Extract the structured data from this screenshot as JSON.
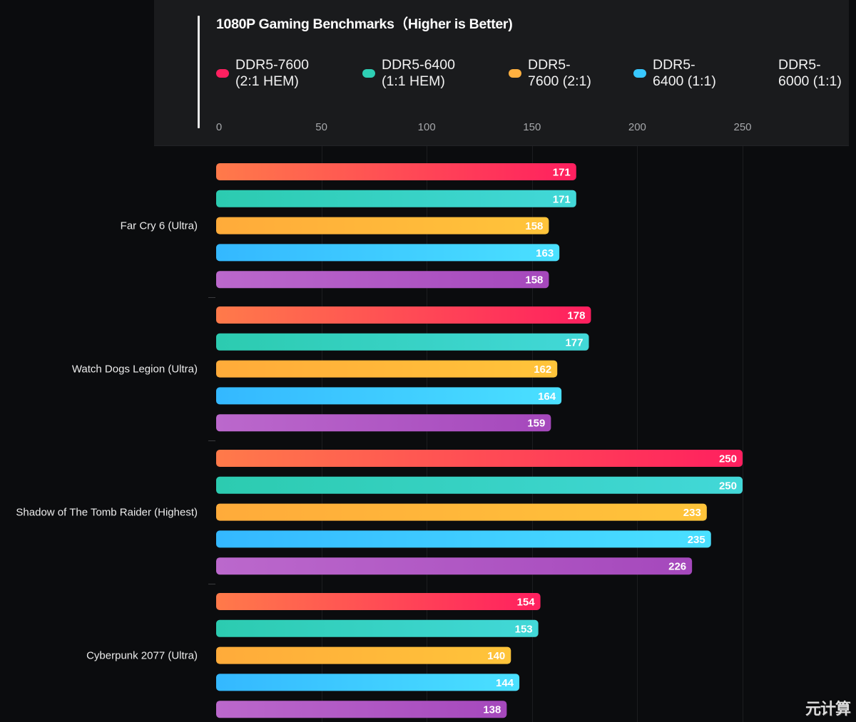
{
  "watermark": "元计算",
  "chart_data": {
    "type": "bar",
    "orientation": "horizontal",
    "title": "1080P Gaming Benchmarks（Higher is Better)",
    "xlabel": "",
    "ylabel": "",
    "xlim": [
      0,
      250
    ],
    "x_ticks": [
      0,
      50,
      100,
      150,
      200,
      250
    ],
    "grid": true,
    "legend_position": "top",
    "categories": [
      "Far Cry 6 (Ultra)",
      "Watch Dogs Legion (Ultra)",
      "Shadow of The Tomb Raider (Highest)",
      "Cyberpunk 2077 (Ultra)"
    ],
    "series": [
      {
        "name": "DDR5-7600 (2:1 HEM)",
        "color": "#ff2060",
        "gradient": [
          "#ff7a4a",
          "#ff1f5f"
        ],
        "show_swatch": true,
        "values": [
          171,
          178,
          250,
          154
        ]
      },
      {
        "name": "DDR5-6400 (1:1 HEM)",
        "color": "#2ecfb4",
        "gradient": [
          "#2ccbb0",
          "#42d8d8"
        ],
        "show_swatch": true,
        "values": [
          171,
          177,
          250,
          153
        ]
      },
      {
        "name": "DDR5-7600 (2:1)",
        "color": "#ffb040",
        "gradient": [
          "#ffab3a",
          "#ffc43a"
        ],
        "show_swatch": true,
        "values": [
          158,
          162,
          233,
          140
        ]
      },
      {
        "name": "DDR5-6400 (1:1)",
        "color": "#38c8ff",
        "gradient": [
          "#34b8ff",
          "#4ae0ff"
        ],
        "show_swatch": true,
        "values": [
          163,
          164,
          235,
          144
        ]
      },
      {
        "name": "DDR5-6000 (1:1)",
        "color": "#b060c8",
        "gradient": [
          "#bb68cc",
          "#a548bc"
        ],
        "show_swatch": false,
        "values": [
          158,
          159,
          226,
          138
        ]
      }
    ],
    "legend_lines": [
      [
        "DDR5-7600",
        "(2:1 HEM)"
      ],
      [
        "DDR5-6400",
        "(1:1 HEM)"
      ],
      [
        "DDR5-",
        "7600 (2:1)"
      ],
      [
        "DDR5-",
        "6400 (1:1)"
      ],
      [
        "DDR5-",
        "6000 (1:1)"
      ]
    ]
  }
}
